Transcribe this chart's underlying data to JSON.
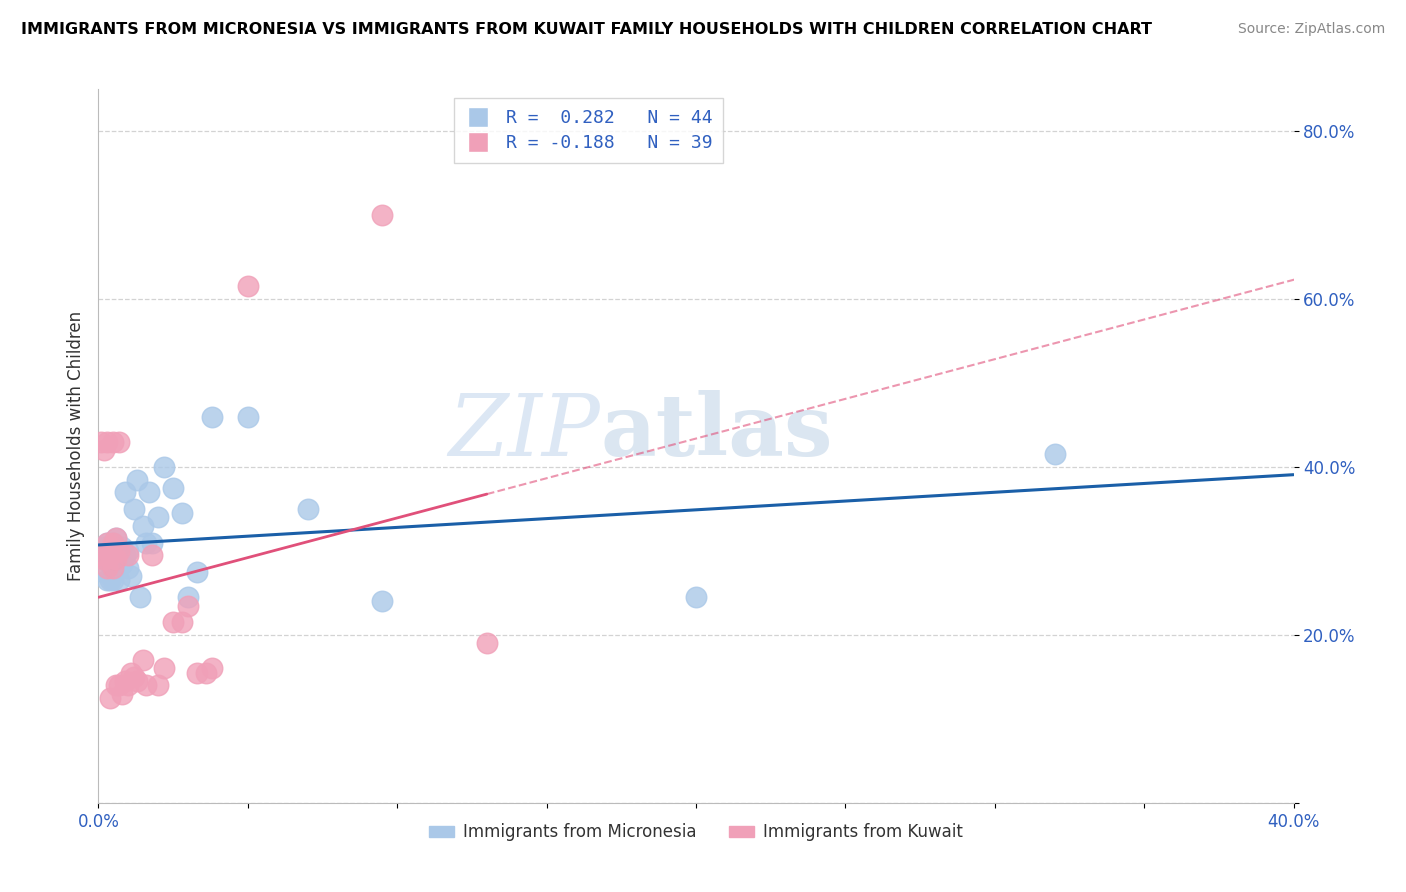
{
  "title": "IMMIGRANTS FROM MICRONESIA VS IMMIGRANTS FROM KUWAIT FAMILY HOUSEHOLDS WITH CHILDREN CORRELATION CHART",
  "source": "Source: ZipAtlas.com",
  "ylabel_label": "Family Households with Children",
  "xlim": [
    0.0,
    0.4
  ],
  "ylim": [
    0.0,
    0.85
  ],
  "y_ticks": [
    0.0,
    0.2,
    0.4,
    0.6,
    0.8
  ],
  "y_tick_labels": [
    "",
    "20.0%",
    "40.0%",
    "60.0%",
    "80.0%"
  ],
  "x_ticks": [
    0.0,
    0.05,
    0.1,
    0.15,
    0.2,
    0.25,
    0.3,
    0.35,
    0.4
  ],
  "x_tick_labels": [
    "0.0%",
    "",
    "",
    "",
    "",
    "",
    "",
    "",
    "40.0%"
  ],
  "blue_color": "#aac8e8",
  "pink_color": "#f0a0b8",
  "blue_line_color": "#1a5fa8",
  "pink_line_color": "#e0507a",
  "grid_color": "#c8c8c8",
  "watermark_zip": "ZIP",
  "watermark_atlas": "atlas",
  "micronesia_x": [
    0.001,
    0.002,
    0.002,
    0.003,
    0.003,
    0.003,
    0.004,
    0.004,
    0.004,
    0.005,
    0.005,
    0.005,
    0.005,
    0.006,
    0.006,
    0.006,
    0.007,
    0.007,
    0.008,
    0.008,
    0.009,
    0.009,
    0.01,
    0.01,
    0.011,
    0.012,
    0.013,
    0.014,
    0.015,
    0.016,
    0.017,
    0.018,
    0.02,
    0.022,
    0.025,
    0.028,
    0.03,
    0.033,
    0.038,
    0.05,
    0.07,
    0.095,
    0.2,
    0.32
  ],
  "micronesia_y": [
    0.295,
    0.305,
    0.275,
    0.295,
    0.265,
    0.31,
    0.285,
    0.3,
    0.265,
    0.295,
    0.275,
    0.31,
    0.265,
    0.3,
    0.285,
    0.315,
    0.3,
    0.265,
    0.305,
    0.285,
    0.295,
    0.37,
    0.28,
    0.3,
    0.27,
    0.35,
    0.385,
    0.245,
    0.33,
    0.31,
    0.37,
    0.31,
    0.34,
    0.4,
    0.375,
    0.345,
    0.245,
    0.275,
    0.46,
    0.46,
    0.35,
    0.24,
    0.245,
    0.415
  ],
  "kuwait_x": [
    0.001,
    0.001,
    0.002,
    0.002,
    0.003,
    0.003,
    0.003,
    0.004,
    0.004,
    0.005,
    0.005,
    0.005,
    0.006,
    0.006,
    0.006,
    0.007,
    0.007,
    0.007,
    0.008,
    0.009,
    0.01,
    0.01,
    0.011,
    0.012,
    0.013,
    0.015,
    0.016,
    0.018,
    0.02,
    0.022,
    0.025,
    0.028,
    0.03,
    0.033,
    0.036,
    0.038,
    0.05,
    0.095,
    0.13
  ],
  "kuwait_y": [
    0.295,
    0.43,
    0.29,
    0.42,
    0.28,
    0.43,
    0.31,
    0.125,
    0.295,
    0.43,
    0.28,
    0.31,
    0.29,
    0.14,
    0.315,
    0.3,
    0.14,
    0.43,
    0.13,
    0.145,
    0.295,
    0.14,
    0.155,
    0.15,
    0.145,
    0.17,
    0.14,
    0.295,
    0.14,
    0.16,
    0.215,
    0.215,
    0.235,
    0.155,
    0.155,
    0.16,
    0.615,
    0.7,
    0.19
  ]
}
